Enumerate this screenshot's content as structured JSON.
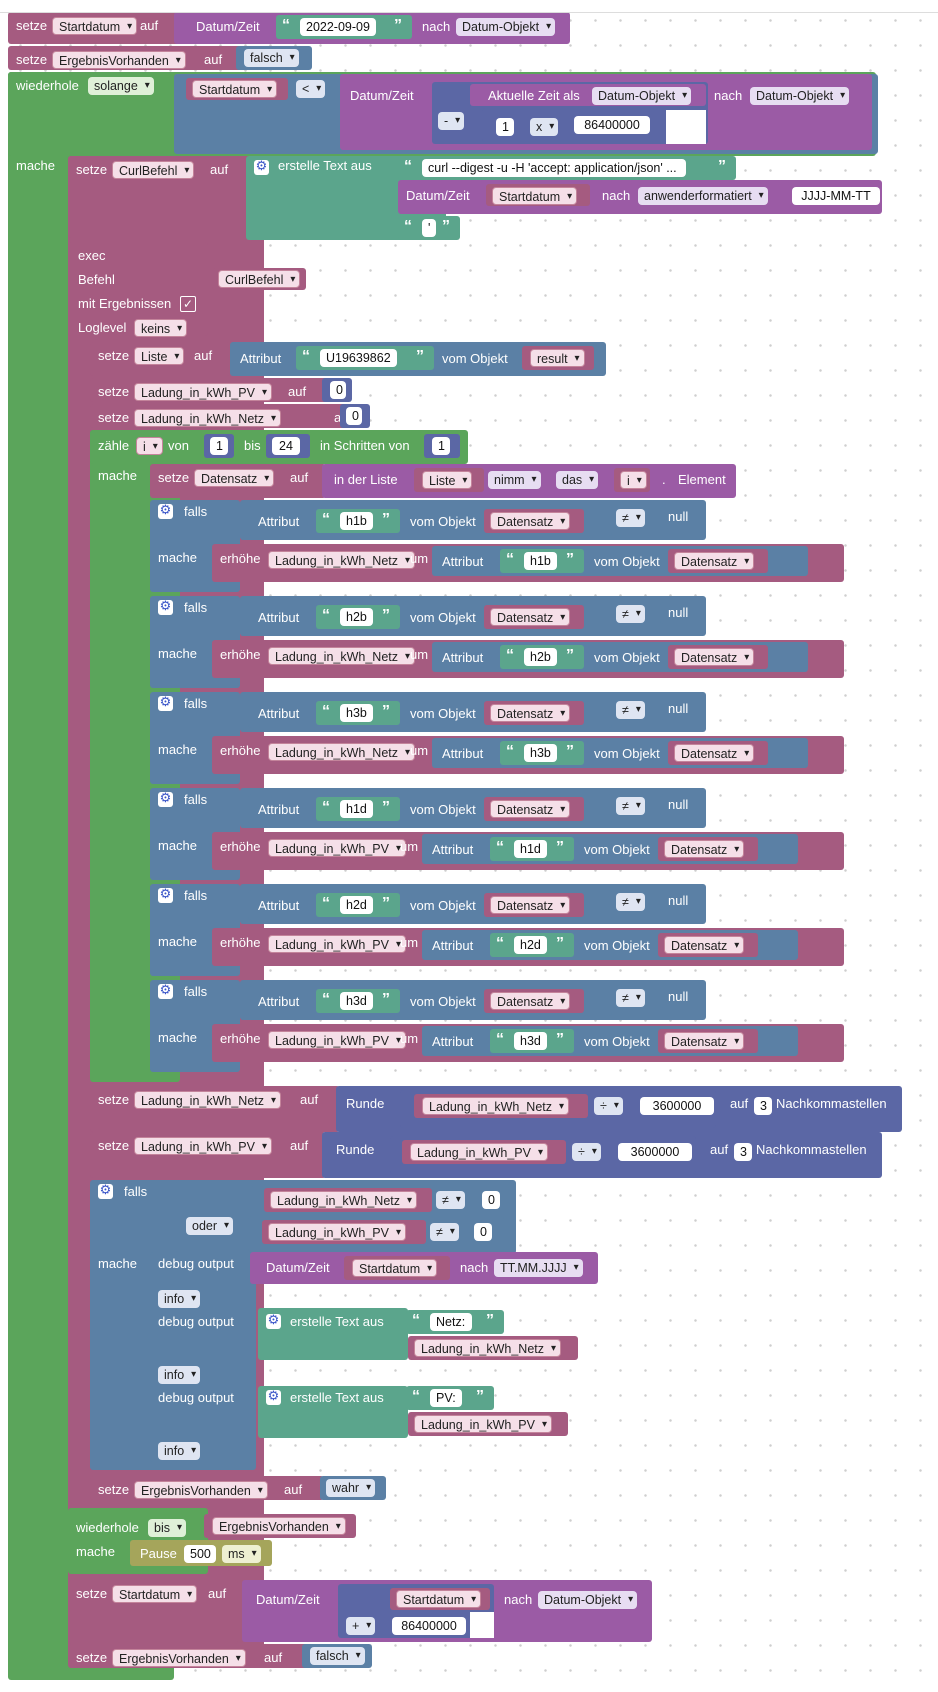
{
  "t": {
    "setze": "setze",
    "auf": "auf",
    "datumzeit": "Datum/Zeit",
    "nach": "nach",
    "wiederhole": "wiederhole",
    "mache": "mache",
    "aktuelle_zeit": "Aktuelle Zeit als",
    "erstelle_text": "erstelle Text aus",
    "exec": "exec",
    "befehl": "Befehl",
    "mit_ergebnissen": "mit Ergebnissen",
    "loglevel": "Loglevel",
    "attribut": "Attribut",
    "vom_objekt": "vom Objekt",
    "zaehle": "zähle",
    "von": "von",
    "bis": "bis",
    "in_schritten": "in Schritten von",
    "in_der_liste": "in der Liste",
    "element": "Element",
    "dot": ".",
    "falls": "falls",
    "null": "null",
    "erhoehe": "erhöhe",
    "um": "um",
    "runde": "Runde",
    "nachkommastellen": "Nachkommastellen",
    "debug_output": "debug output",
    "pause": "Pause",
    "check": "✓"
  },
  "dd": {
    "startdatum": "Startdatum",
    "datum_objekt": "Datum-Objekt",
    "ergebnis_vorhanden": "ErgebnisVorhanden",
    "falsch": "falsch",
    "wahr": "wahr",
    "solange": "solange",
    "lt": "<",
    "minus": "-",
    "plus": "+",
    "mul": "x",
    "curl_befehl": "CurlBefehl",
    "anwenderformatiert": "anwenderformatiert",
    "keins": "keins",
    "liste": "Liste",
    "result": "result",
    "kwh_pv": "Ladung_in_kWh_PV",
    "kwh_netz": "Ladung_in_kWh_Netz",
    "i": "i",
    "nimm": "nimm",
    "das": "das",
    "datensatz": "Datensatz",
    "neq": "≠",
    "div": "÷",
    "oder": "oder",
    "ttmmjjjj": "TT.MM.JJJJ",
    "info": "info",
    "bis": "bis",
    "ms": "ms"
  },
  "v": {
    "date_str": "2022-09-09",
    "one": "1",
    "ms_day": "86400000",
    "curl_cmd": "curl --digest -u  -H 'accept: application/json' ...",
    "jjjj_mm_tt": "JJJJ-MM-TT",
    "quote_char": "'",
    "u_id": "U19639862",
    "zero": "0",
    "twentyfour": "24",
    "div_val": "3600000",
    "three": "3",
    "h1b": "h1b",
    "h2b": "h2b",
    "h3b": "h3b",
    "h1d": "h1d",
    "h2d": "h2d",
    "h3d": "h3d",
    "netz_label": "Netz: ",
    "pv_label": "PV: ",
    "pause_ms": "500"
  },
  "colors": {
    "var_block": "#a55b80",
    "logic": "#5b80a5",
    "loop": "#5ba55b",
    "date": "#9b5ba5",
    "math": "#5b67a5",
    "text": "#5ba58c",
    "pause": "#a5a55b"
  }
}
